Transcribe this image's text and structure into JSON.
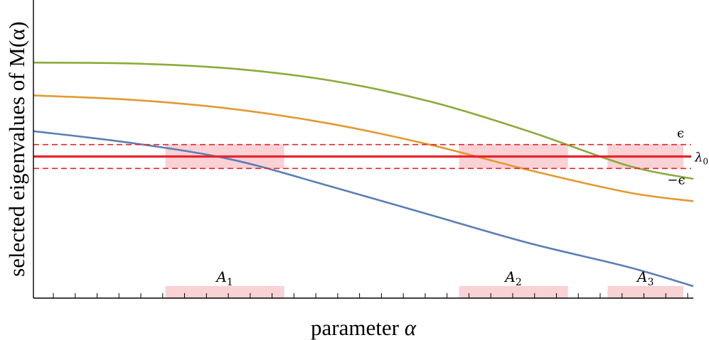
{
  "chart_data": {
    "type": "line",
    "xlabel_text": "parameter ",
    "xlabel_symbol": "α",
    "ylabel": "selected eigenvalues of M(α)",
    "xlim": [
      0,
      10
    ],
    "ylim": [
      0,
      10
    ],
    "grid": false,
    "series": [
      {
        "color": "#8aab3a",
        "x": [
          0,
          1.5,
          3,
          4.5,
          6,
          7.5,
          9,
          10
        ],
        "y": [
          7.9,
          7.87,
          7.7,
          7.3,
          6.6,
          5.6,
          4.45,
          4.0
        ]
      },
      {
        "color": "#e29a32",
        "x": [
          0,
          1.5,
          3,
          4.5,
          6,
          7.5,
          9,
          10
        ],
        "y": [
          6.8,
          6.65,
          6.35,
          5.85,
          5.15,
          4.3,
          3.55,
          3.25
        ]
      },
      {
        "color": "#5a7fb5",
        "x": [
          0,
          1.5,
          3,
          4.5,
          6,
          7.5,
          9,
          10
        ],
        "y": [
          5.6,
          5.2,
          4.65,
          3.75,
          2.8,
          1.85,
          1.05,
          0.4
        ]
      }
    ],
    "reference": {
      "lambda0": 4.75,
      "epsilon": 0.4,
      "labels": {
        "plus": "ϵ",
        "center": "λ",
        "center_sub": "0",
        "minus": "−ϵ"
      }
    },
    "regions": [
      {
        "name": "A",
        "sub": "1",
        "x": [
          2.0,
          3.8
        ]
      },
      {
        "name": "A",
        "sub": "2",
        "x": [
          6.45,
          8.1
        ]
      },
      {
        "name": "A",
        "sub": "3",
        "x": [
          8.7,
          9.85
        ]
      }
    ],
    "minor_ticks": 30
  }
}
